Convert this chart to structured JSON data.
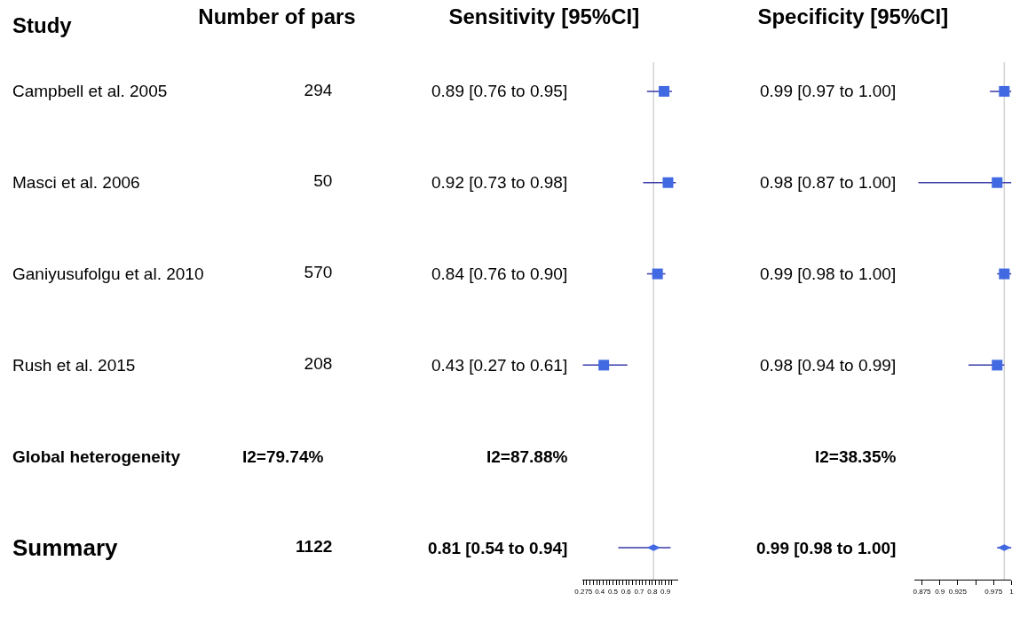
{
  "chart_data": [
    {
      "type": "other",
      "title": "Number of pars",
      "ylabel": "Study",
      "categories": [
        "Campbell et al. 2005",
        "Masci et al. 2006",
        "Ganiyusufolgu et al. 2010",
        "Rush et al. 2015",
        "Global heterogeneity",
        "Summary"
      ],
      "values": [
        294,
        50,
        570,
        208,
        null,
        1122
      ],
      "data_labels": true,
      "annotations": [
        "I2=79.74%"
      ]
    },
    {
      "type": "scatter",
      "orientation": "horizontal",
      "title": "Sensitivity [95%CI]",
      "categories": [
        null,
        null,
        null,
        null,
        null,
        null
      ],
      "grid": false,
      "xlim": [
        0.265,
        1.0
      ],
      "xticks": [
        0.275,
        {
          "value": 0.3,
          "label": null
        },
        {
          "value": 0.325,
          "label": null
        },
        {
          "value": 0.35,
          "label": null
        },
        {
          "value": 0.375,
          "label": null
        },
        0.4,
        {
          "value": 0.425,
          "label": null
        },
        {
          "value": 0.45,
          "label": null
        },
        {
          "value": 0.475,
          "label": null
        },
        0.5,
        {
          "value": 0.525,
          "label": null
        },
        {
          "value": 0.55,
          "label": null
        },
        {
          "value": 0.575,
          "label": null
        },
        0.6,
        {
          "value": 0.625,
          "label": null
        },
        {
          "value": 0.65,
          "label": null
        },
        {
          "value": 0.675,
          "label": null
        },
        0.7,
        {
          "value": 0.725,
          "label": null
        },
        {
          "value": 0.75,
          "label": null
        },
        {
          "value": 0.775,
          "label": null
        },
        0.8,
        {
          "value": 0.825,
          "label": null
        },
        {
          "value": 0.85,
          "label": null
        },
        {
          "value": 0.875,
          "label": null
        },
        0.9,
        {
          "value": 0.925,
          "label": null
        },
        {
          "value": 0.95,
          "label": null
        }
      ],
      "series": [
        {
          "color": "#4169e1",
          "marker": "square",
          "values": [
            0.89,
            0.92,
            0.84,
            0.43,
            null,
            0.81
          ],
          "errors": [
            [
              0.76,
              0.95
            ],
            [
              0.73,
              0.98
            ],
            [
              0.76,
              0.9
            ],
            [
              0.27,
              0.61
            ],
            null,
            [
              0.54,
              0.94
            ]
          ],
          "value_labels": [
            "0.89 [0.76 to 0.95]",
            "0.92 [0.73 to 0.98]",
            "0.84 [0.76 to 0.90]",
            "0.43 [0.27 to 0.61]",
            null,
            "0.81 [0.54 to 0.94]"
          ]
        }
      ],
      "ref_lines": [
        {
          "axis": "x",
          "value": 0.81,
          "color": "#d3d3d3"
        }
      ],
      "annotations": [
        "I2=87.88%"
      ]
    },
    {
      "type": "scatter",
      "orientation": "horizontal",
      "title": "Specificity [95%CI]",
      "categories": [
        null,
        null,
        null,
        null,
        null,
        null
      ],
      "grid": false,
      "xlim": [
        0.865,
        1.0
      ],
      "xticks": [
        0.875,
        0.9,
        0.925,
        {
          "value": 0.95,
          "label": null
        },
        0.975,
        1
      ],
      "series": [
        {
          "color": "#4169e1",
          "marker": "square",
          "values": [
            0.99,
            0.98,
            0.99,
            0.98,
            null,
            0.99
          ],
          "errors": [
            [
              0.97,
              1.0
            ],
            [
              0.87,
              1.0
            ],
            [
              0.98,
              1.0
            ],
            [
              0.94,
              0.99
            ],
            null,
            [
              0.98,
              1.0
            ]
          ],
          "value_labels": [
            "0.99 [0.97 to 1.00]",
            "0.98 [0.87 to 1.00]",
            "0.99 [0.98 to 1.00]",
            "0.98 [0.94 to 0.99]",
            null,
            "0.99 [0.98 to 1.00]"
          ]
        }
      ],
      "ref_lines": [
        {
          "axis": "x",
          "value": 0.99,
          "color": "#d3d3d3"
        }
      ],
      "annotations": [
        "I2=38.35%"
      ]
    }
  ]
}
